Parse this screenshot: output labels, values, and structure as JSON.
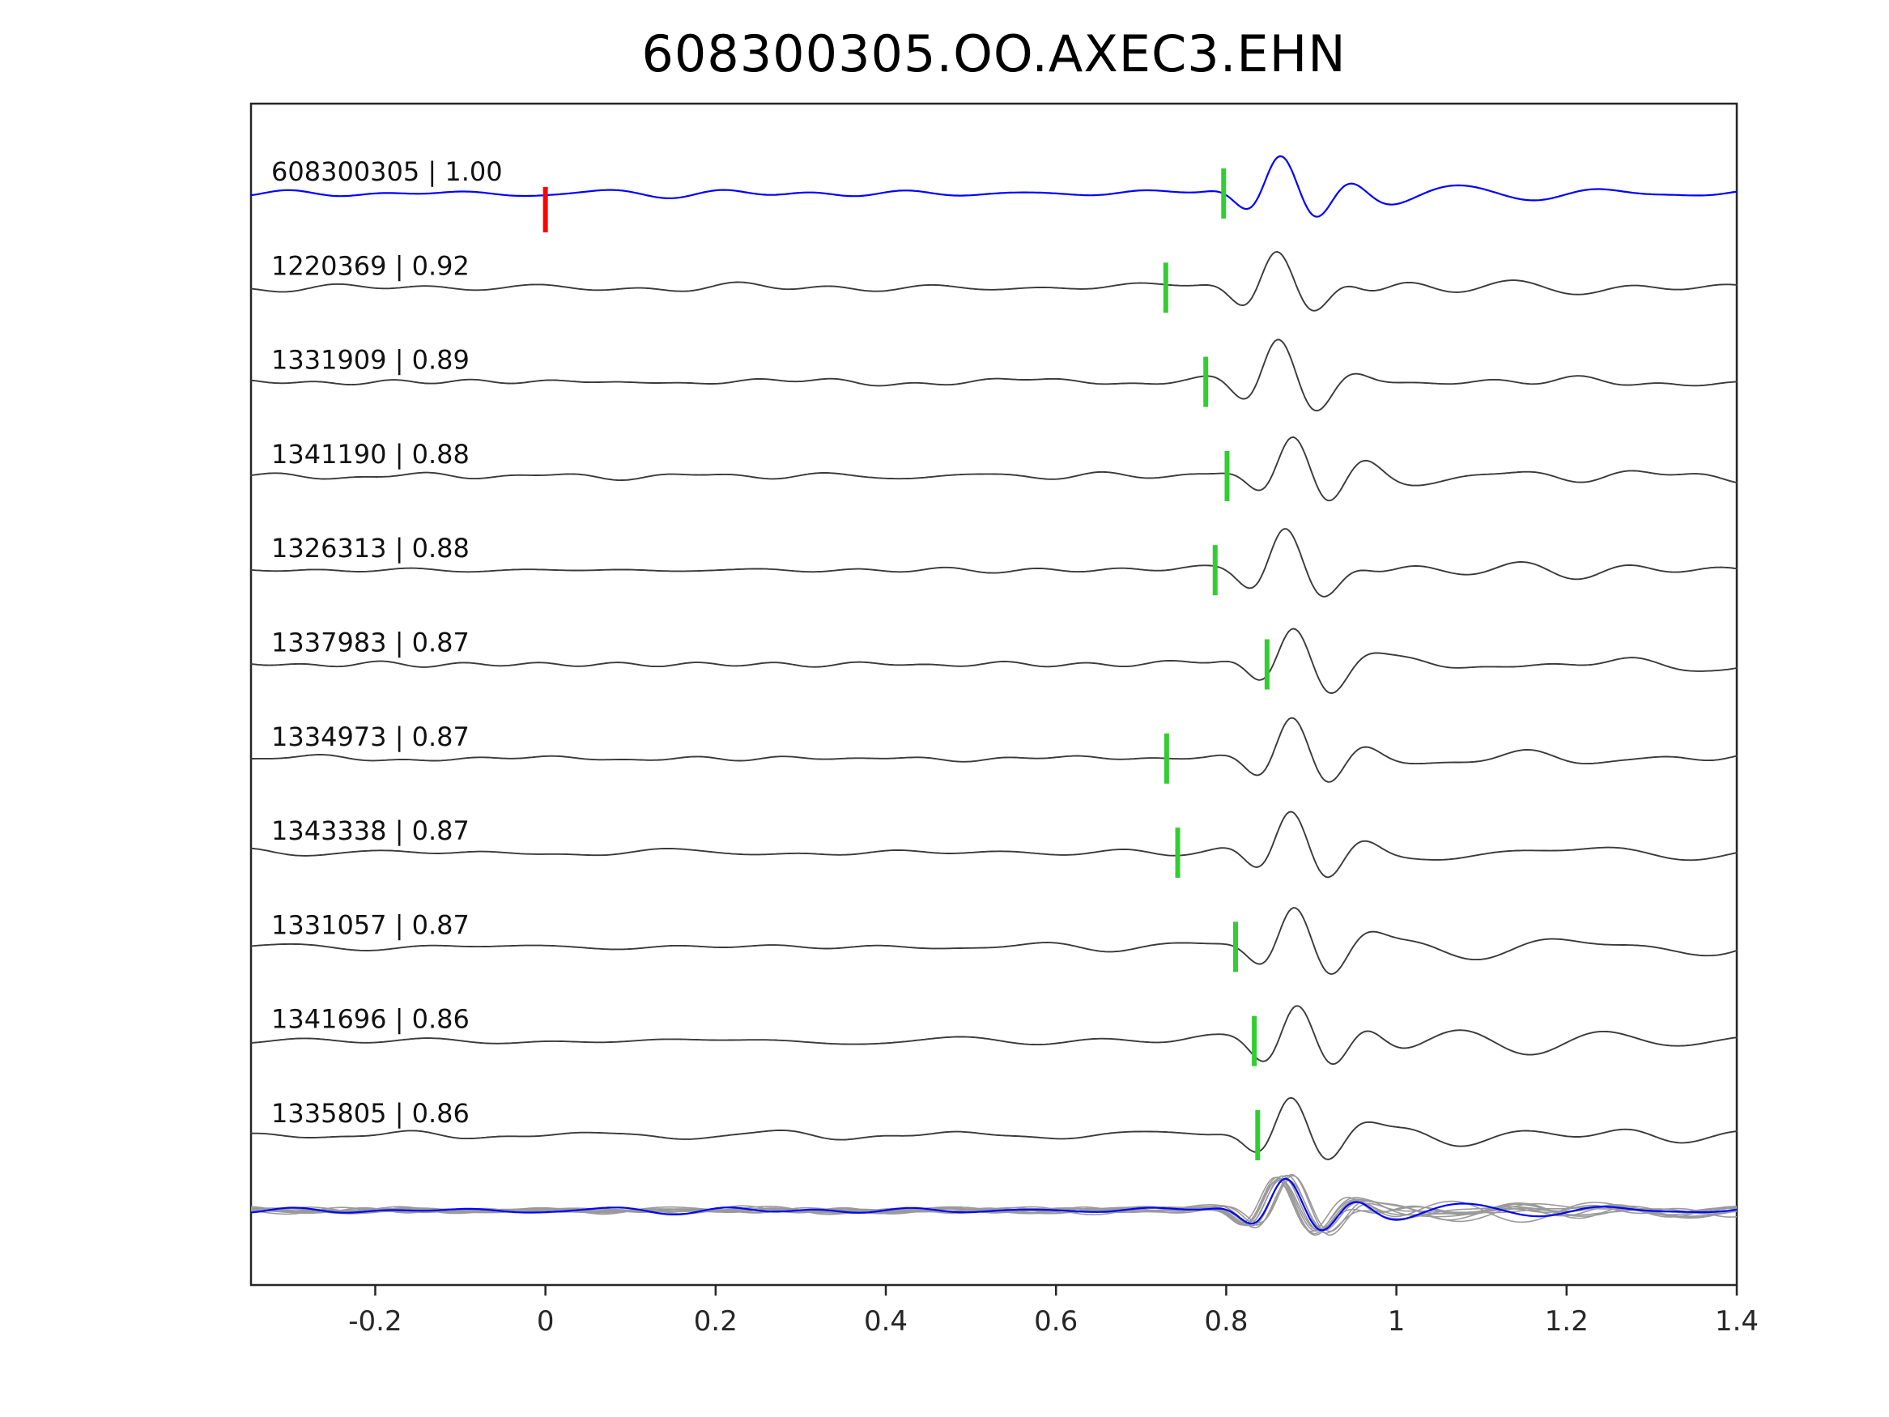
{
  "chart_data": {
    "type": "line",
    "kind": "seismic-waveform-stack",
    "title": "608300305.OO.AXEC3.EHN",
    "xlabel": "",
    "ylabel": "",
    "grid": false,
    "xlim": [
      -0.346,
      1.4
    ],
    "x_ticks": [
      -0.2,
      0,
      0.2,
      0.4,
      0.6,
      0.8,
      1,
      1.2,
      1.4
    ],
    "x_tick_labels": [
      "-0.2",
      "0",
      "0.2",
      "0.4",
      "0.6",
      "0.8",
      "1",
      "1.2",
      "1.4"
    ],
    "template_color": "#0000ff",
    "trace_color": "#3a3a3a",
    "overlay_color": "#9a9a9a",
    "pick_color": "#32cd32",
    "template_pick_color": "#ff0000",
    "traces": [
      {
        "label": "608300305 | 1.00",
        "event_id": "608300305",
        "cc": 1.0,
        "is_template": true,
        "pick_x": 0.797,
        "origin_marker_x": 0.0,
        "arrival_x": 0.864,
        "amp": 48,
        "seed": 101
      },
      {
        "label": "1220369 | 0.92",
        "event_id": "1220369",
        "cc": 0.92,
        "is_template": false,
        "pick_x": 0.729,
        "arrival_x": 0.859,
        "amp": 47,
        "seed": 202
      },
      {
        "label": "1331909 | 0.89",
        "event_id": "1331909",
        "cc": 0.89,
        "is_template": false,
        "pick_x": 0.776,
        "arrival_x": 0.861,
        "amp": 48,
        "seed": 303
      },
      {
        "label": "1341190 | 0.88",
        "event_id": "1341190",
        "cc": 0.88,
        "is_template": false,
        "pick_x": 0.801,
        "arrival_x": 0.879,
        "amp": 49,
        "seed": 404
      },
      {
        "label": "1326313 | 0.88",
        "event_id": "1326313",
        "cc": 0.88,
        "is_template": false,
        "pick_x": 0.787,
        "arrival_x": 0.869,
        "amp": 47,
        "seed": 505
      },
      {
        "label": "1337983 | 0.87",
        "event_id": "1337983",
        "cc": 0.87,
        "is_template": false,
        "pick_x": 0.848,
        "arrival_x": 0.879,
        "amp": 46,
        "seed": 606
      },
      {
        "label": "1334973 | 0.87",
        "event_id": "1334973",
        "cc": 0.87,
        "is_template": false,
        "pick_x": 0.73,
        "arrival_x": 0.877,
        "amp": 47,
        "seed": 707
      },
      {
        "label": "1343338 | 0.87",
        "event_id": "1343338",
        "cc": 0.87,
        "is_template": false,
        "pick_x": 0.743,
        "arrival_x": 0.876,
        "amp": 49,
        "seed": 808
      },
      {
        "label": "1331057 | 0.87",
        "event_id": "1331057",
        "cc": 0.87,
        "is_template": false,
        "pick_x": 0.811,
        "arrival_x": 0.88,
        "amp": 48,
        "seed": 909
      },
      {
        "label": "1341696 | 0.86",
        "event_id": "1341696",
        "cc": 0.86,
        "is_template": false,
        "pick_x": 0.833,
        "arrival_x": 0.883,
        "amp": 48,
        "seed": 1010
      },
      {
        "label": "1335805 | 0.86",
        "event_id": "1335805",
        "cc": 0.86,
        "is_template": false,
        "pick_x": 0.837,
        "arrival_x": 0.876,
        "amp": 47,
        "seed": 1111
      }
    ],
    "overlay": {
      "description": "all detection traces aligned on arrival and superimposed with blue template trace",
      "align_x": 0.87,
      "amp_scale": 0.85
    }
  }
}
